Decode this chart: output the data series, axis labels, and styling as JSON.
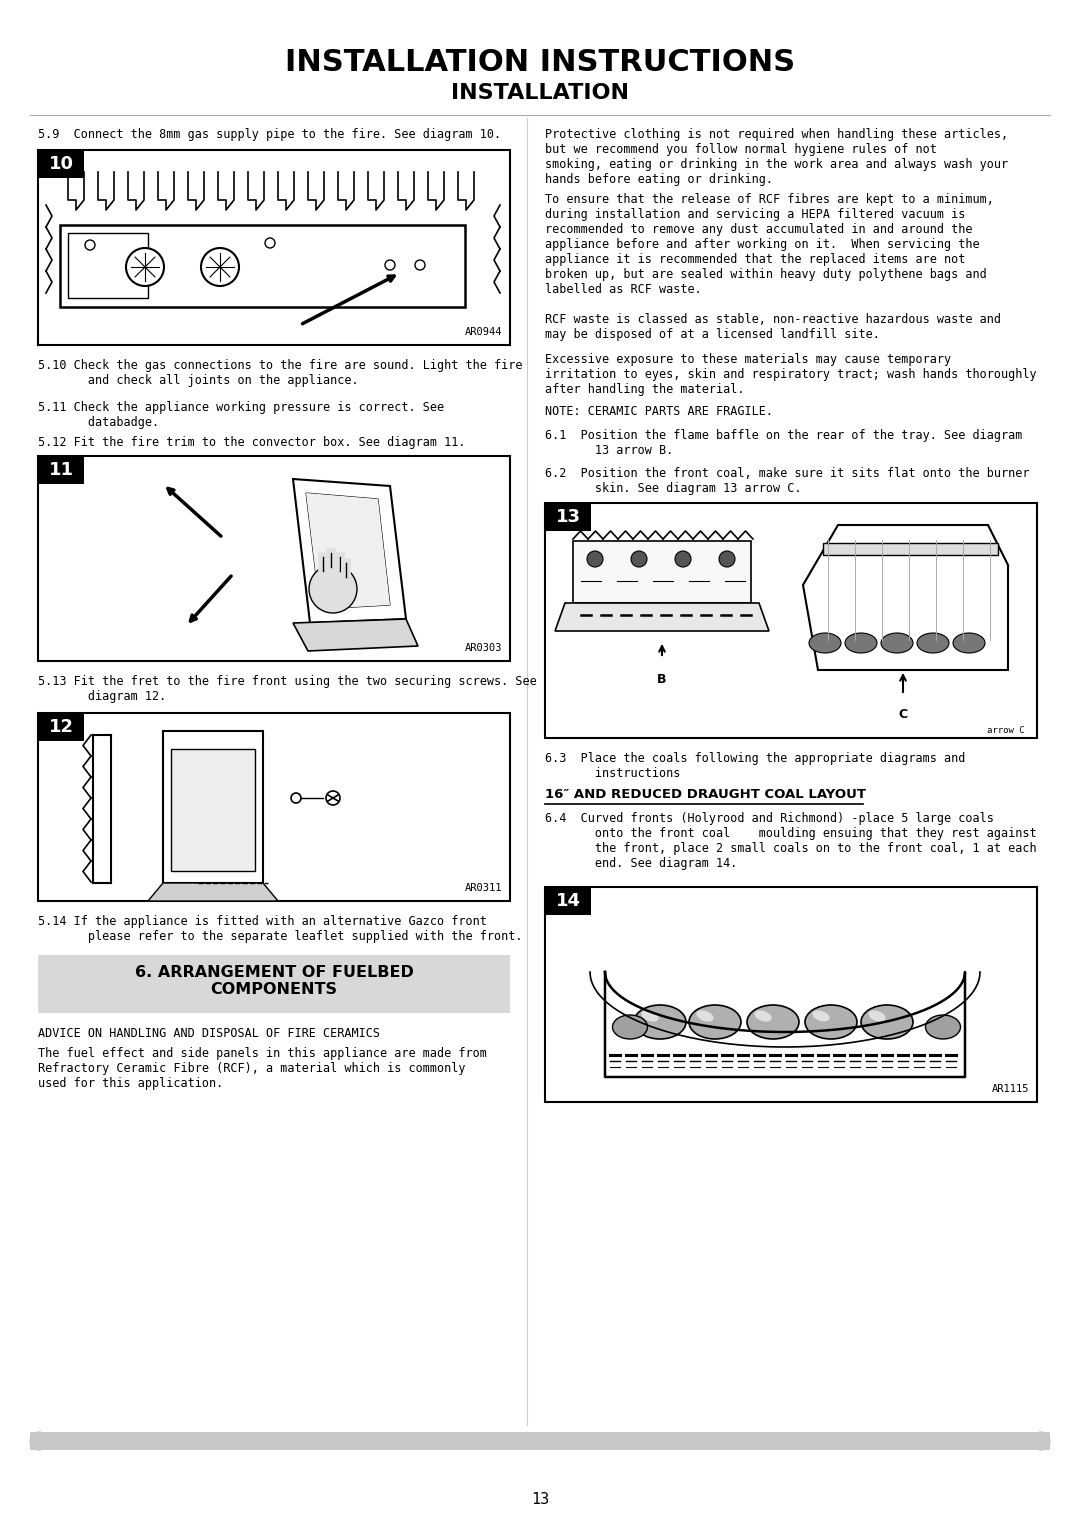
{
  "title_line1": "INSTALLATION INSTRUCTIONS",
  "title_line2": "INSTALLATION",
  "bg_color": "#ffffff",
  "divider_color": "#c8c8c8",
  "page_number": "13",
  "left_column": {
    "step_59": "5.9  Connect the 8mm gas supply pipe to the fire. See diagram 10.",
    "diagram10_label": "10",
    "diagram10_ref": "AR0944",
    "step_510": "5.10 Check the gas connections to the fire are sound. Light the fire\n       and check all joints on the appliance.",
    "step_511": "5.11 Check the appliance working pressure is correct. See\n       databadge.",
    "step_512": "5.12 Fit the fire trim to the convector box. See diagram 11.",
    "diagram11_label": "11",
    "diagram11_ref": "AR0303",
    "step_513": "5.13 Fit the fret to the fire front using the two securing screws. See\n       diagram 12.",
    "diagram12_label": "12",
    "diagram12_ref": "AR0311",
    "step_514": "5.14 If the appliance is fitted with an alternative Gazco front\n       please refer to the separate leaflet supplied with the front.",
    "section_header": "6. ARRANGEMENT OF FUELBED\nCOMPONENTS",
    "advice_header": "ADVICE ON HANDLING AND DISPOSAL OF FIRE CERAMICS",
    "advice_body": "The fuel effect and side panels in this appliance are made from\nRefractory Ceramic Fibre (RCF), a material which is commonly\nused for this application."
  },
  "right_column": {
    "para1": "Protective clothing is not required when handling these articles,\nbut we recommend you follow normal hygiene rules of not\nsmoking, eating or drinking in the work area and always wash your\nhands before eating or drinking.",
    "para2": "To ensure that the release of RCF fibres are kept to a minimum,\nduring installation and servicing a HEPA filtered vacuum is\nrecommended to remove any dust accumulated in and around the\nappliance before and after working on it.  When servicing the\nappliance it is recommended that the replaced items are not\nbroken up, but are sealed within heavy duty polythene bags and\nlabelled as RCF waste.",
    "para3": "RCF waste is classed as stable, non-reactive hazardous waste and\nmay be disposed of at a licensed landfill site.",
    "para4": "Excessive exposure to these materials may cause temporary\nirritation to eyes, skin and respiratory tract; wash hands thoroughly\nafter handling the material.",
    "note": "NOTE: CERAMIC PARTS ARE FRAGILE.",
    "step_61": "6.1  Position the flame baffle on the rear of the tray. See diagram\n       13 arrow B.",
    "step_62": "6.2  Position the front coal, make sure it sits flat onto the burner\n       skin. See diagram 13 arrow C.",
    "diagram13_label": "13",
    "diagram13_ref": "",
    "step_63": "6.3  Place the coals following the appropriate diagrams and\n       instructions",
    "coal_layout_header": "16″ AND REDUCED DRAUGHT COAL LAYOUT",
    "step_64": "6.4  Curved fronts (Holyrood and Richmond) -place 5 large coals\n       onto the front coal    moulding ensuing that they rest against\n       the front, place 2 small coals on to the front coal, 1 at each\n       end. See diagram 14.",
    "diagram14_label": "14",
    "diagram14_ref": "AR1115"
  },
  "font_family": "monospace",
  "title_fontsize": 22,
  "subtitle_fontsize": 16,
  "body_fontsize": 8.5,
  "header_fontsize": 10,
  "section_bg": "#d8d8d8"
}
